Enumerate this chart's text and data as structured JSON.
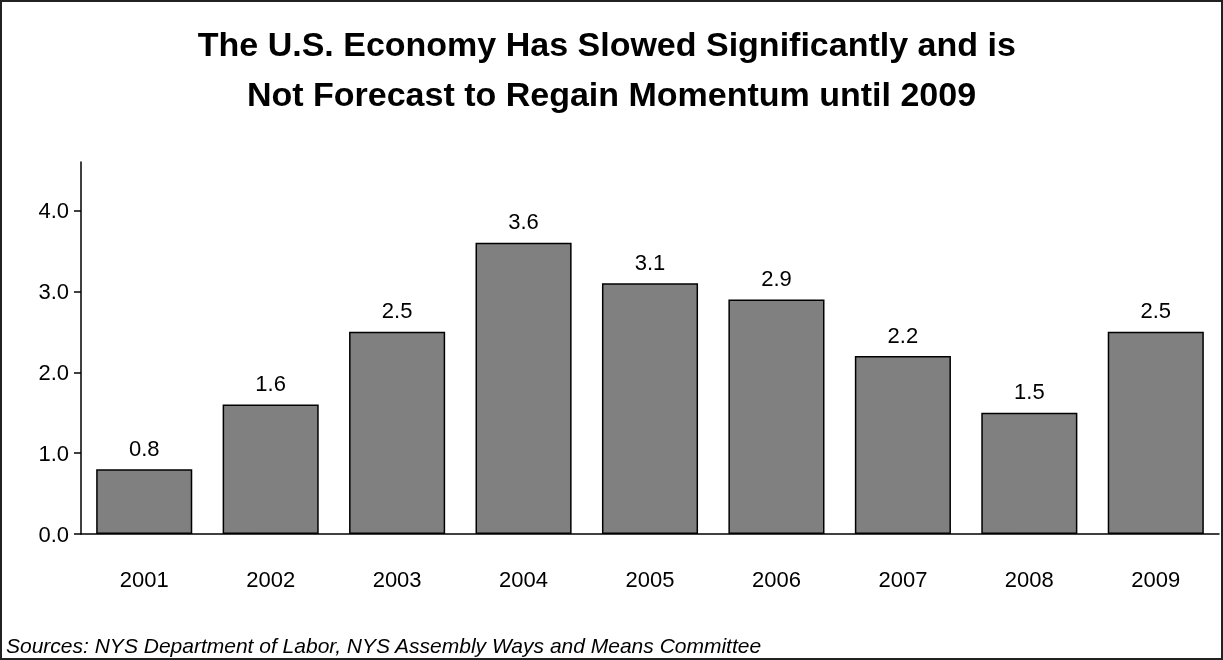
{
  "chart_data": {
    "type": "bar",
    "title": "The U.S. Economy Has Slowed Significantly and is Not Forecast to Regain Momentum until 2009",
    "categories": [
      "2001",
      "2002",
      "2003",
      "2004",
      "2005",
      "2006",
      "2007",
      "2008",
      "2009"
    ],
    "values": [
      0.8,
      1.6,
      2.5,
      3.6,
      3.1,
      2.9,
      2.2,
      1.5,
      2.5
    ],
    "color": "#808080",
    "ylim": [
      0,
      4.6
    ],
    "yticks": [
      {
        "value": 0,
        "label": "0.0"
      },
      {
        "value": 1,
        "label": "1.0"
      },
      {
        "value": 2,
        "label": "2.0"
      },
      {
        "value": 3,
        "label": "3.0"
      },
      {
        "value": 4,
        "label": "4.0"
      }
    ],
    "grid": false,
    "data_labels": true,
    "annotations": [
      "Sources: NYS Department of Labor, NYS Assembly Ways and Means Committee"
    ]
  }
}
